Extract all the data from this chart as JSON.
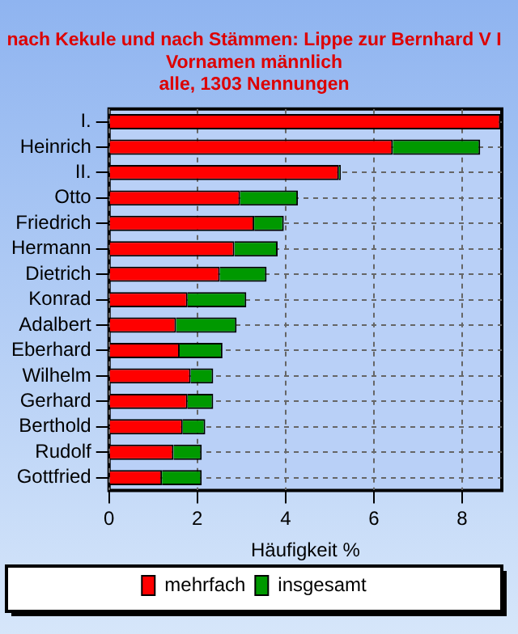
{
  "chart_data": {
    "type": "bar",
    "orientation": "horizontal",
    "stacked": true,
    "title": "nach Kekule und nach Stämmen: Lippe zur Bernhard V I",
    "subtitle": "Vornamen männlich\nalle, 1303 Nennungen",
    "xlabel": "Häufigkeit %",
    "categories": [
      "I.",
      "Heinrich",
      "II.",
      "Otto",
      "Friedrich",
      "Hermann",
      "Dietrich",
      "Konrad",
      "Adalbert",
      "Eberhard",
      "Wilhelm",
      "Gerhard",
      "Berthold",
      "Rudolf",
      "Gottfried"
    ],
    "series": [
      {
        "name": "mehrfach",
        "color": "#ff0000",
        "values": [
          8.87,
          6.43,
          5.21,
          2.97,
          3.29,
          2.84,
          2.51,
          1.78,
          1.52,
          1.6,
          1.85,
          1.78,
          1.67,
          1.46,
          1.2
        ]
      },
      {
        "name": "insgesamt",
        "color": "#009900",
        "values": [
          0,
          1.98,
          0.04,
          1.31,
          0.67,
          0.98,
          1.06,
          1.33,
          1.37,
          0.97,
          0.51,
          0.58,
          0.51,
          0.64,
          0.9
        ]
      }
    ],
    "xlim": [
      0,
      8.9
    ],
    "xticks": [
      0,
      2,
      4,
      6,
      8
    ],
    "grid": true,
    "legend": "bottom"
  }
}
